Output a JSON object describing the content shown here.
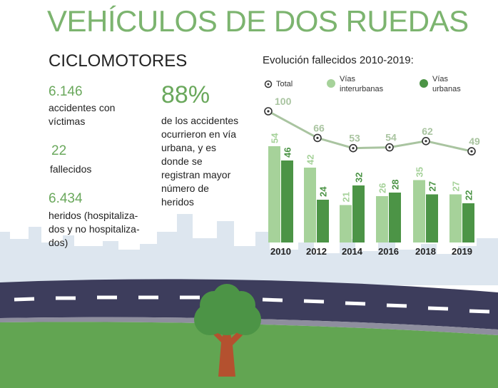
{
  "header": {
    "title": "VEHÍCULOS DE DOS RUEDAS",
    "section": "CICLOMOTORES"
  },
  "stats": {
    "accidents_value": "6.146",
    "accidents_label_1": "accidentes con",
    "accidents_label_2": "víctimas",
    "deaths_value": "22",
    "deaths_label": "fallecidos",
    "injured_value": "6.434",
    "injured_label_1": "heridos (hospitaliza-",
    "injured_label_2": "dos y no hospitaliza-",
    "injured_label_3": "dos)",
    "pct_value": "88%",
    "pct_lines": [
      "de los accidentes",
      "ocurrieron en vía",
      "urbana, y es",
      "donde se",
      "registran mayor",
      "número de",
      "heridos"
    ]
  },
  "legend": {
    "total": "Total",
    "interurban_1": "Vías",
    "interurban_2": "interurbanas",
    "urban_1": "Vías",
    "urban_2": "urbanas"
  },
  "colors": {
    "title_green": "#7cb46f",
    "light_green": "#a6d29a",
    "dark_green": "#4c9446",
    "line_gray": "#a9c4a0",
    "road": "#3d3d5c",
    "grass": "#62a552",
    "skyline": "#dde6ef"
  },
  "chart_data": {
    "type": "bar",
    "title": "Evolución fallecidos 2010-2019:",
    "categories": [
      "2010",
      "2012",
      "2014",
      "2016",
      "2018",
      "2019"
    ],
    "series": [
      {
        "name": "Vías interurbanas",
        "values": [
          54,
          42,
          21,
          26,
          35,
          27
        ]
      },
      {
        "name": "Vías urbanas",
        "values": [
          46,
          24,
          32,
          28,
          27,
          22
        ]
      },
      {
        "name": "Total",
        "values": [
          100,
          66,
          53,
          54,
          62,
          49
        ],
        "style": "line"
      }
    ]
  }
}
